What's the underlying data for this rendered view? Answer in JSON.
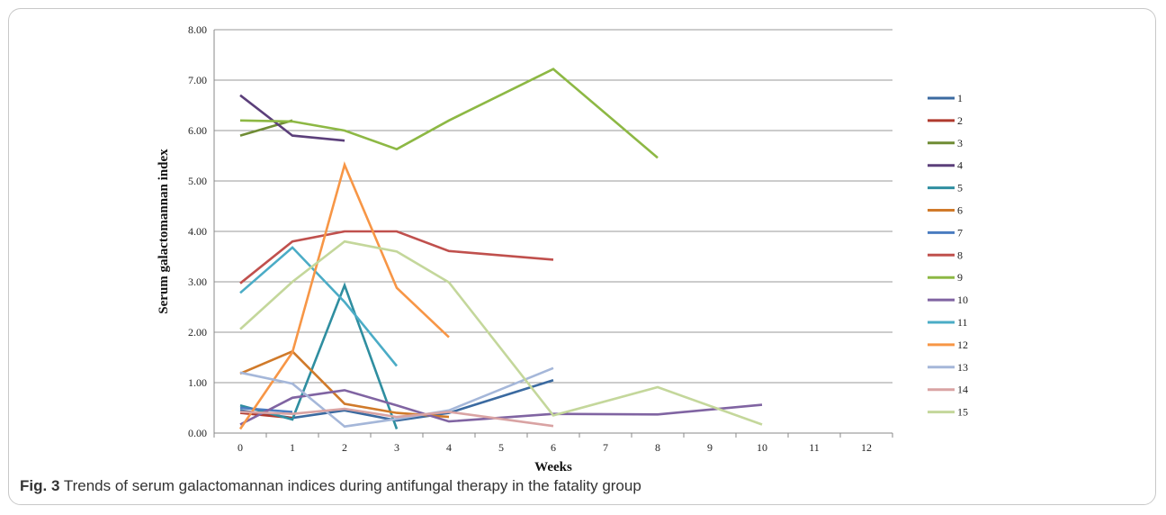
{
  "figure": {
    "caption_label": "Fig. 3",
    "caption_text": " Trends of serum galactomannan indices during antifungal therapy in the fatality group"
  },
  "chart_data": {
    "type": "line",
    "title": "",
    "xlabel": "Weeks",
    "ylabel": "Serum galactomannan index",
    "xlim": [
      -0.5,
      12.5
    ],
    "ylim": [
      0,
      8
    ],
    "x_ticks": [
      "0",
      "1",
      "2",
      "3",
      "4",
      "5",
      "6",
      "7",
      "8",
      "9",
      "10",
      "11",
      "12"
    ],
    "y_ticks": [
      "0.00",
      "1.00",
      "2.00",
      "3.00",
      "4.00",
      "5.00",
      "6.00",
      "7.00",
      "8.00"
    ],
    "grid": "horizontal",
    "legend_position": "right",
    "series": [
      {
        "name": "1",
        "color": "#3b6aa0",
        "points": [
          [
            0,
            0.45
          ],
          [
            1,
            0.3
          ],
          [
            2,
            0.45
          ],
          [
            3,
            0.25
          ],
          [
            4,
            0.4
          ],
          [
            6,
            1.05
          ]
        ]
      },
      {
        "name": "2",
        "color": "#b03a2e",
        "points": [
          [
            0,
            0.4
          ],
          [
            1,
            0.3
          ]
        ]
      },
      {
        "name": "3",
        "color": "#6f8c35",
        "points": [
          [
            0,
            5.9
          ],
          [
            1,
            6.2
          ]
        ]
      },
      {
        "name": "4",
        "color": "#5b3f7a",
        "points": [
          [
            0,
            6.7
          ],
          [
            1,
            5.9
          ],
          [
            2,
            5.8
          ]
        ]
      },
      {
        "name": "5",
        "color": "#2f8ea0",
        "points": [
          [
            0,
            0.55
          ],
          [
            1,
            0.27
          ],
          [
            2,
            2.93
          ],
          [
            3,
            0.08
          ]
        ]
      },
      {
        "name": "6",
        "color": "#d07a2a",
        "points": [
          [
            0,
            1.18
          ],
          [
            1,
            1.62
          ],
          [
            2,
            0.58
          ],
          [
            3,
            0.4
          ],
          [
            4,
            0.32
          ]
        ]
      },
      {
        "name": "7",
        "color": "#4a7cc0",
        "points": [
          [
            0,
            0.5
          ],
          [
            1,
            0.42
          ]
        ]
      },
      {
        "name": "8",
        "color": "#c0504d",
        "points": [
          [
            0,
            2.97
          ],
          [
            1,
            3.8
          ],
          [
            2,
            4.0
          ],
          [
            3,
            4.0
          ],
          [
            4,
            3.61
          ],
          [
            6,
            3.44
          ]
        ]
      },
      {
        "name": "9",
        "color": "#8db844",
        "points": [
          [
            0,
            6.2
          ],
          [
            1,
            6.18
          ],
          [
            2,
            6.0
          ],
          [
            3,
            5.63
          ],
          [
            4,
            6.2
          ],
          [
            6,
            7.22
          ],
          [
            8,
            5.46
          ]
        ]
      },
      {
        "name": "10",
        "color": "#8064a2",
        "points": [
          [
            0,
            0.17
          ],
          [
            1,
            0.7
          ],
          [
            2,
            0.85
          ],
          [
            3,
            0.55
          ],
          [
            4,
            0.23
          ],
          [
            6,
            0.38
          ],
          [
            8,
            0.37
          ],
          [
            10,
            0.56
          ]
        ]
      },
      {
        "name": "11",
        "color": "#4bacc6",
        "points": [
          [
            0,
            2.78
          ],
          [
            1,
            3.68
          ],
          [
            2,
            2.6
          ],
          [
            3,
            1.33
          ]
        ]
      },
      {
        "name": "12",
        "color": "#f79646",
        "points": [
          [
            0,
            0.08
          ],
          [
            1,
            1.6
          ],
          [
            2,
            5.32
          ],
          [
            3,
            2.88
          ],
          [
            4,
            1.9
          ]
        ]
      },
      {
        "name": "13",
        "color": "#a5b7d9",
        "points": [
          [
            0,
            1.2
          ],
          [
            1,
            0.98
          ],
          [
            2,
            0.13
          ],
          [
            3,
            0.28
          ],
          [
            4,
            0.45
          ],
          [
            6,
            1.29
          ]
        ]
      },
      {
        "name": "14",
        "color": "#d9a3a3",
        "points": [
          [
            0,
            0.42
          ],
          [
            1,
            0.38
          ],
          [
            2,
            0.48
          ],
          [
            3,
            0.32
          ],
          [
            4,
            0.42
          ],
          [
            6,
            0.14
          ]
        ]
      },
      {
        "name": "15",
        "color": "#c4d79b",
        "points": [
          [
            0,
            2.06
          ],
          [
            1,
            3.0
          ],
          [
            2,
            3.8
          ],
          [
            3,
            3.6
          ],
          [
            4,
            2.99
          ],
          [
            6,
            0.35
          ],
          [
            8,
            0.91
          ],
          [
            10,
            0.17
          ]
        ]
      }
    ]
  }
}
